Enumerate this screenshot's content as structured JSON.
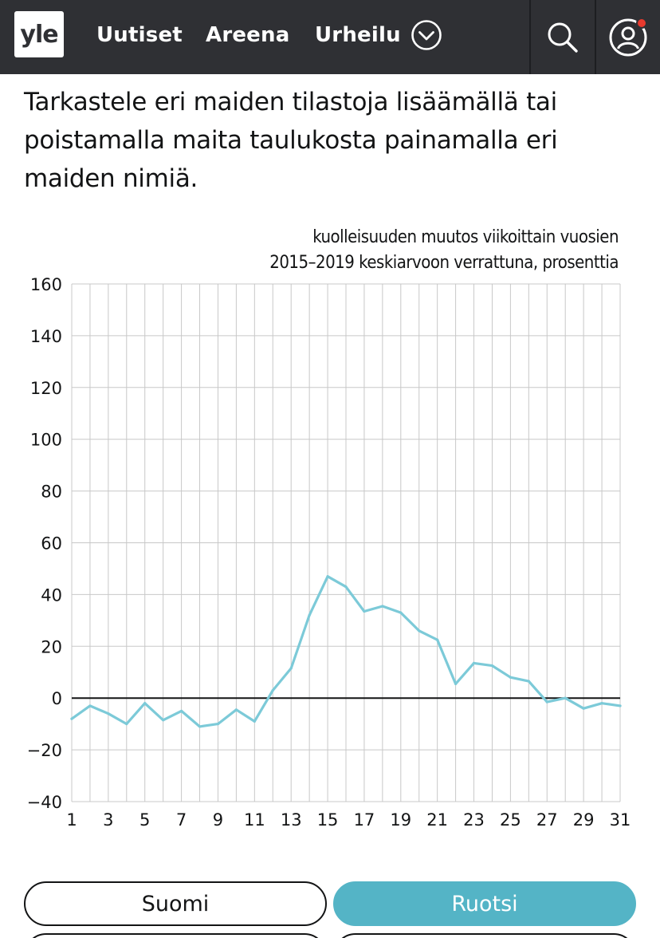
{
  "header": {
    "logo": "yle",
    "links": [
      "Uutiset",
      "Areena",
      "Urheilu"
    ],
    "icons": {
      "more": "chevron-down-circle-icon",
      "search": "search-icon",
      "profile": "user-icon"
    },
    "notification_color": "#e83a2e"
  },
  "intro": {
    "text": "Tarkastele eri maiden tilastoja lisäämällä tai poistamalla maita taulukosta painamalla eri maiden nimiä."
  },
  "chart_data": {
    "type": "line",
    "title_line1": "kuolleisuuden muutos viikoittain vuosien",
    "title_line2": "2015–2019 keskiarvoon verrattuna, prosenttia",
    "ylim": [
      -40,
      160
    ],
    "yticks": [
      160,
      140,
      120,
      100,
      80,
      60,
      40,
      20,
      0,
      -20,
      -40
    ],
    "xlim": [
      1,
      31
    ],
    "xticks": [
      1,
      3,
      5,
      7,
      9,
      11,
      13,
      15,
      17,
      19,
      21,
      23,
      25,
      27,
      29,
      31
    ],
    "grid": true,
    "line_color": "#7ccad8",
    "series": [
      {
        "x": [
          1,
          2,
          3,
          4,
          5,
          6,
          7,
          8,
          9,
          10,
          11,
          12,
          13,
          14,
          15,
          16,
          17,
          18,
          19,
          20,
          21,
          22,
          23,
          24,
          25,
          26,
          27,
          28,
          29,
          30,
          31
        ],
        "values": [
          -8,
          -3,
          -6,
          -10,
          -2,
          -8.5,
          -5,
          -11,
          -10,
          -4.5,
          -9,
          3,
          11.5,
          32,
          47,
          43,
          33.5,
          35.5,
          33,
          26,
          22.5,
          5.5,
          13.5,
          12.5,
          8,
          6.5,
          -1.5,
          0,
          -4,
          -2,
          -3
        ]
      }
    ]
  },
  "buttons": [
    {
      "label": "Suomi",
      "selected": false
    },
    {
      "label": "Ruotsi",
      "selected": true
    }
  ]
}
